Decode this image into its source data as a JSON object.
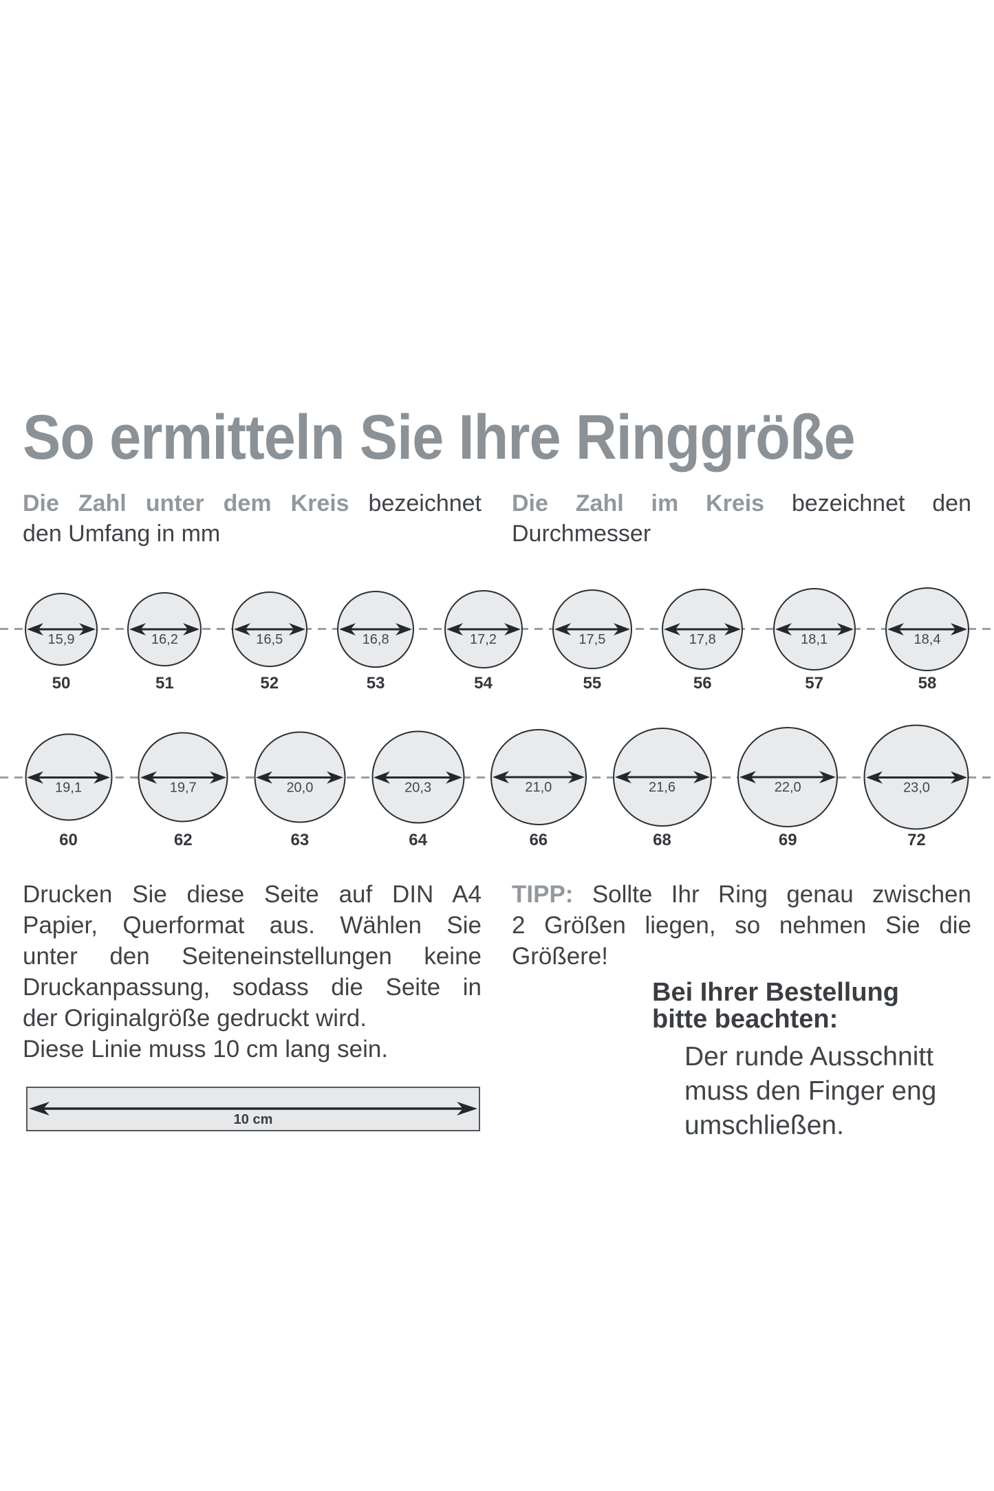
{
  "title": "So ermitteln Sie Ihre Ringgröße",
  "colors": {
    "accent_gray": "#8b9297",
    "text_dark": "#3f4347",
    "circle_fill": "#e8eaec",
    "circle_border": "#2b3035",
    "dashed_line": "#9e9e9e"
  },
  "intro_left": {
    "lines": [
      {
        "lead": "Die Zahl unter dem Kreis",
        "text": " bezeichnet",
        "justify": true
      },
      {
        "text": "den Umfang in mm"
      }
    ]
  },
  "intro_right": {
    "lines": [
      {
        "lead": "Die Zahl im Kreis",
        "text": " bezeichnet den",
        "justify": true
      },
      {
        "text": "Durchmesser"
      }
    ]
  },
  "ring_rows": [
    {
      "circles": [
        {
          "diameter": "15,9",
          "size": "50"
        },
        {
          "diameter": "16,2",
          "size": "51"
        },
        {
          "diameter": "16,5",
          "size": "52"
        },
        {
          "diameter": "16,8",
          "size": "53"
        },
        {
          "diameter": "17,2",
          "size": "54"
        },
        {
          "diameter": "17,5",
          "size": "55"
        },
        {
          "diameter": "17,8",
          "size": "56"
        },
        {
          "diameter": "18,1",
          "size": "57"
        },
        {
          "diameter": "18,4",
          "size": "58"
        }
      ]
    },
    {
      "circles": [
        {
          "diameter": "19,1",
          "size": "60"
        },
        {
          "diameter": "19,7",
          "size": "62"
        },
        {
          "diameter": "20,0",
          "size": "63"
        },
        {
          "diameter": "20,3",
          "size": "64"
        },
        {
          "diameter": "21,0",
          "size": "66"
        },
        {
          "diameter": "21,6",
          "size": "68"
        },
        {
          "diameter": "22,0",
          "size": "69"
        },
        {
          "diameter": "23,0",
          "size": "72"
        }
      ]
    }
  ],
  "print_note": {
    "lines": [
      {
        "text": "Drucken Sie diese Seite auf DIN A4",
        "justify": true
      },
      {
        "text": "Papier, Querformat aus. Wählen Sie",
        "justify": true
      },
      {
        "text": "unter den Seiteneinstellungen keine",
        "justify": true
      },
      {
        "text": "Druckanpassung, sodass die Seite in",
        "justify": true
      },
      {
        "text": "der Originalgröße gedruckt wird."
      },
      {
        "text": "Diese Linie muss 10 cm lang sein."
      }
    ]
  },
  "tip": {
    "lines": [
      {
        "lead": "TIPP:",
        "text": " Sollte Ihr Ring genau zwischen",
        "justify": true
      },
      {
        "text": "2 Größen liegen, so nehmen Sie die",
        "justify": true
      },
      {
        "text": "Größere!"
      }
    ]
  },
  "order_note": {
    "heading": {
      "lines": [
        {
          "text": "Bei Ihrer Bestellung"
        },
        {
          "text": "bitte beachten:"
        }
      ]
    },
    "body": {
      "lines": [
        {
          "text": "Der runde Ausschnitt"
        },
        {
          "text": "muss den Finger eng"
        },
        {
          "text": "umschließen."
        }
      ]
    }
  },
  "ruler": {
    "label": "10 cm"
  }
}
